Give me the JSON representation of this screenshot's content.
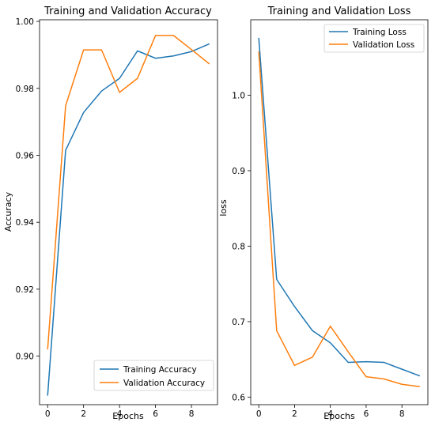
{
  "colors": {
    "training": "#1f77b4",
    "validation": "#ff7f0e"
  },
  "chart_data": [
    {
      "type": "line",
      "title": "Training and Validation Accuracy",
      "xlabel": "Epochs",
      "ylabel": "Accuracy",
      "xlim": [
        -0.45,
        9.45
      ],
      "ylim": [
        0.8855,
        1.0005
      ],
      "xticks": [
        0,
        2,
        4,
        6,
        8
      ],
      "xtick_labels": [
        "0",
        "2",
        "4",
        "6",
        "8"
      ],
      "yticks": [
        0.9,
        0.92,
        0.94,
        0.96,
        0.98,
        1.0
      ],
      "ytick_labels": [
        "0.90",
        "0.92",
        "0.94",
        "0.96",
        "0.98",
        "1.00"
      ],
      "legend": "lower-right",
      "grid": false,
      "x": [
        0,
        1,
        2,
        3,
        4,
        5,
        6,
        7,
        8,
        9
      ],
      "series": [
        {
          "name": "Training Accuracy",
          "color": "#1f77b4",
          "values": [
            0.8882,
            0.9615,
            0.9728,
            0.9792,
            0.983,
            0.9912,
            0.989,
            0.9897,
            0.991,
            0.9933
          ]
        },
        {
          "name": "Validation Accuracy",
          "color": "#ff7f0e",
          "values": [
            0.902,
            0.9748,
            0.9915,
            0.9915,
            0.9788,
            0.983,
            0.9958,
            0.9958,
            0.9916,
            0.9873
          ]
        }
      ]
    },
    {
      "type": "line",
      "title": "Training and Validation Loss",
      "xlabel": "Epochs",
      "ylabel": "loss",
      "xlim": [
        -0.45,
        9.45
      ],
      "ylim": [
        0.59,
        1.1
      ],
      "xticks": [
        0,
        2,
        4,
        6,
        8
      ],
      "xtick_labels": [
        "0",
        "2",
        "4",
        "6",
        "8"
      ],
      "yticks": [
        0.6,
        0.7,
        0.8,
        0.9,
        1.0
      ],
      "ytick_labels": [
        "0.6",
        "0.7",
        "0.8",
        "0.9",
        "1.0"
      ],
      "legend": "upper-right",
      "grid": false,
      "x": [
        0,
        1,
        2,
        3,
        4,
        5,
        6,
        7,
        8,
        9
      ],
      "series": [
        {
          "name": "Training Loss",
          "color": "#1f77b4",
          "values": [
            1.076,
            0.756,
            0.72,
            0.688,
            0.672,
            0.646,
            0.647,
            0.646,
            0.637,
            0.628
          ]
        },
        {
          "name": "Validation Loss",
          "color": "#ff7f0e",
          "values": [
            1.058,
            0.688,
            0.642,
            0.653,
            0.694,
            0.66,
            0.627,
            0.624,
            0.617,
            0.614
          ]
        }
      ]
    }
  ]
}
